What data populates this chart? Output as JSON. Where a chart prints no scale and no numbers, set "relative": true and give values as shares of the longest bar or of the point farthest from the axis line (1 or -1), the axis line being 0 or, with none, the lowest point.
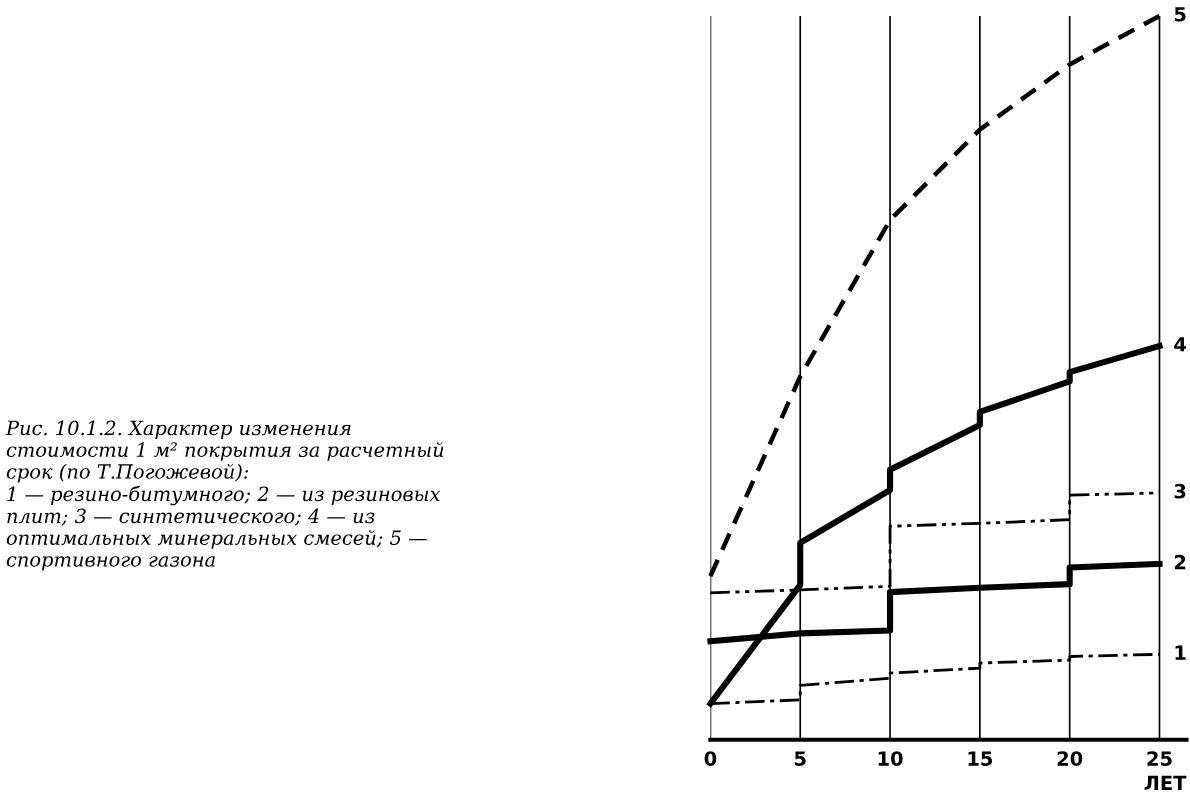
{
  "chart_data": {
    "type": "line",
    "relative": true,
    "xlabel": "ЛЕТ",
    "xlim": [
      0,
      26.5
    ],
    "xticks": [
      0,
      5,
      10,
      15,
      20,
      25
    ],
    "grid": "x",
    "tick_labels": "x",
    "marker": "none",
    "annotations": [
      "Рис. 10.1.2. Характер изменения\nстоимости 1 м² покрытия за расчетный\nсрок (по Т.Погожевой):\n1 — резино-битумного; 2 — из резиновых\nплит; 3 — синтетического; 4 — из\nоптимальных минеральных смесей; 5 —\nспортивного газона"
    ],
    "series": [
      {
        "name": "1",
        "color": "#000000",
        "line_style": "dashdot",
        "x": [
          0,
          5,
          5,
          10,
          10,
          15,
          15,
          20,
          20,
          25
        ],
        "values": [
          0.05,
          0.055,
          0.075,
          0.085,
          0.092,
          0.099,
          0.106,
          0.11,
          0.115,
          0.118
        ]
      },
      {
        "name": "2",
        "color": "#000000",
        "line_style": "solid",
        "x": [
          0,
          5,
          10,
          10,
          15,
          20,
          20,
          25
        ],
        "values": [
          0.136,
          0.147,
          0.151,
          0.204,
          0.21,
          0.215,
          0.238,
          0.243
        ]
      },
      {
        "name": "3",
        "color": "#000000",
        "line_style": "dashdotdot",
        "x": [
          0,
          5,
          10,
          10,
          15,
          20,
          20,
          25
        ],
        "values": [
          0.203,
          0.207,
          0.212,
          0.295,
          0.299,
          0.304,
          0.338,
          0.341
        ]
      },
      {
        "name": "4",
        "color": "#000000",
        "line_style": "solid",
        "x": [
          0,
          5,
          5,
          10,
          10,
          15,
          15,
          20,
          20,
          25
        ],
        "values": [
          0.05,
          0.214,
          0.272,
          0.345,
          0.373,
          0.435,
          0.453,
          0.495,
          0.508,
          0.544
        ]
      },
      {
        "name": "5",
        "color": "#000000",
        "line_style": "dashed",
        "x": [
          0,
          5,
          10,
          15,
          20,
          25
        ],
        "values": [
          0.226,
          0.502,
          0.718,
          0.843,
          0.933,
          1.0
        ]
      }
    ]
  }
}
